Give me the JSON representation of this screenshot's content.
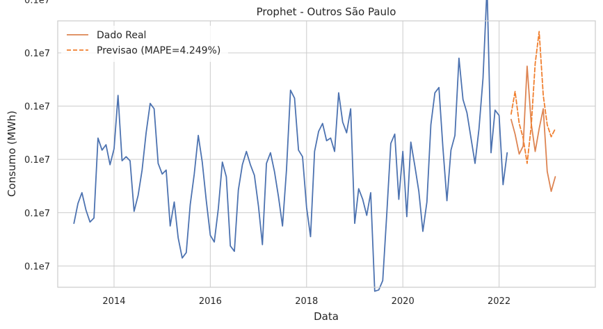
{
  "chart_data": {
    "type": "line",
    "title": "Prophet - Outros São Paulo",
    "xlabel": "Data",
    "ylabel": "Consumo (MWh)",
    "xlim": [
      2012.83,
      2024.0
    ],
    "ylim": [
      0,
      100
    ],
    "x_ticks": [
      2014,
      2016,
      2018,
      2020,
      2022
    ],
    "x_tick_labels": [
      "2014",
      "2016",
      "2018",
      "2020",
      "2022"
    ],
    "y_ticks": [
      8,
      28,
      48,
      68,
      88,
      108
    ],
    "y_tick_labels": [
      "0.1e7",
      "0.1e7",
      "0.1e7",
      "0.1e7",
      "0.1e7",
      "0.1e7"
    ],
    "y_units_note": "",
    "grid": true,
    "legend_position": "top-left",
    "colors": {
      "history": "#4c72b0",
      "real": "#dd8452",
      "forecast": "#f07f2f",
      "grid": "#cccccc",
      "spine": "#cccccc"
    },
    "series": [
      {
        "key": "history",
        "name": "",
        "style": "solid",
        "color": "#4c72b0",
        "x": [
          2013.167,
          2013.25,
          2013.333,
          2013.417,
          2013.5,
          2013.583,
          2013.667,
          2013.75,
          2013.833,
          2013.917,
          2014.0,
          2014.083,
          2014.167,
          2014.25,
          2014.333,
          2014.417,
          2014.5,
          2014.583,
          2014.667,
          2014.75,
          2014.833,
          2014.917,
          2015.0,
          2015.083,
          2015.167,
          2015.25,
          2015.333,
          2015.417,
          2015.5,
          2015.583,
          2015.667,
          2015.75,
          2015.833,
          2015.917,
          2016.0,
          2016.083,
          2016.167,
          2016.25,
          2016.333,
          2016.417,
          2016.5,
          2016.583,
          2016.667,
          2016.75,
          2016.833,
          2016.917,
          2017.0,
          2017.083,
          2017.167,
          2017.25,
          2017.333,
          2017.417,
          2017.5,
          2017.583,
          2017.667,
          2017.75,
          2017.833,
          2017.917,
          2018.0,
          2018.083,
          2018.167,
          2018.25,
          2018.333,
          2018.417,
          2018.5,
          2018.583,
          2018.667,
          2018.75,
          2018.833,
          2018.917,
          2019.0,
          2019.083,
          2019.167,
          2019.25,
          2019.333,
          2019.417,
          2019.5,
          2019.583,
          2019.667,
          2019.75,
          2019.833,
          2019.917,
          2020.0,
          2020.083,
          2020.167,
          2020.25,
          2020.333,
          2020.417,
          2020.5,
          2020.583,
          2020.667,
          2020.75,
          2020.833,
          2020.917,
          2021.0,
          2021.083,
          2021.167,
          2021.25,
          2021.333,
          2021.417,
          2021.5,
          2021.583,
          2021.667,
          2021.75,
          2021.833,
          2021.917,
          2022.0,
          2022.083,
          2022.167
        ],
        "y": [
          24,
          31.5,
          35.5,
          29,
          24.5,
          26,
          56,
          51.5,
          53.5,
          46,
          52,
          72,
          47.5,
          49,
          47.5,
          28.5,
          34.5,
          44,
          58,
          69,
          67,
          46.5,
          42.5,
          44,
          23,
          32,
          18.5,
          11,
          13,
          31,
          42.5,
          57,
          47,
          32.5,
          19.5,
          17,
          29.5,
          47,
          41.5,
          15.5,
          13.5,
          36.5,
          46,
          51,
          46,
          42,
          30.5,
          16,
          46.5,
          50.5,
          43.5,
          34,
          23,
          44,
          74,
          71,
          51.5,
          49,
          30,
          19,
          51,
          58.5,
          61.5,
          55,
          56,
          51,
          73,
          62,
          58,
          67,
          24,
          37,
          33,
          27,
          35.5,
          -1.5,
          -1,
          2.5,
          27.5,
          54,
          57.5,
          33,
          51,
          26.5,
          54.5,
          45.5,
          36,
          21,
          32,
          61,
          73,
          75,
          52.5,
          32.5,
          51.5,
          57,
          86,
          70.5,
          65.5,
          56,
          46.5,
          59.5,
          78.5,
          113,
          50.5,
          66.5,
          64.5,
          38.5,
          50.5
        ]
      },
      {
        "key": "real",
        "name": "Dado Real",
        "style": "solid",
        "color": "#dd8452",
        "x": [
          2022.25,
          2022.333,
          2022.417,
          2022.5,
          2022.583,
          2022.667,
          2022.75,
          2022.833,
          2022.917,
          2023.0,
          2023.083,
          2023.167
        ],
        "y": [
          63,
          57.5,
          50,
          53,
          83,
          61.5,
          51,
          59.5,
          67,
          43.5,
          36,
          41.5
        ]
      },
      {
        "key": "forecast",
        "name": "Previsao (MAPE=4.249%)",
        "style": "dashed",
        "color": "#f07f2f",
        "x": [
          2022.25,
          2022.333,
          2022.417,
          2022.5,
          2022.583,
          2022.667,
          2022.75,
          2022.833,
          2022.917,
          2023.0,
          2023.083,
          2023.167
        ],
        "y": [
          65,
          73.5,
          61.5,
          56,
          46.5,
          60.5,
          84,
          96,
          72,
          61,
          56.5,
          59.5
        ]
      }
    ],
    "legend": [
      "Dado Real",
      "Previsao (MAPE=4.249%)"
    ]
  }
}
